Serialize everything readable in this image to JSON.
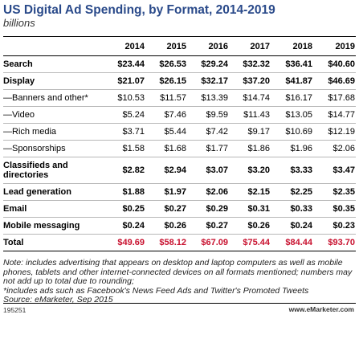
{
  "header": {
    "title": "US Digital Ad Spending, by Format, 2014-2019",
    "subtitle": "billions"
  },
  "chart_data": {
    "type": "table",
    "title": "US Digital Ad Spending, by Format, 2014-2019",
    "subtitle": "billions",
    "columns": [
      "2014",
      "2015",
      "2016",
      "2017",
      "2018",
      "2019"
    ],
    "rows": [
      {
        "label": "Search",
        "values": [
          "$23.44",
          "$26.53",
          "$29.24",
          "$32.32",
          "$36.41",
          "$40.60"
        ],
        "bold": true
      },
      {
        "label": "Display",
        "values": [
          "$21.07",
          "$26.15",
          "$32.17",
          "$37.20",
          "$41.87",
          "$46.69"
        ],
        "bold": true
      },
      {
        "label": "—Banners and other*",
        "values": [
          "$10.53",
          "$11.57",
          "$13.39",
          "$14.74",
          "$16.17",
          "$17.68"
        ],
        "bold": false
      },
      {
        "label": "—Video",
        "values": [
          "$5.24",
          "$7.46",
          "$9.59",
          "$11.43",
          "$13.05",
          "$14.77"
        ],
        "bold": false
      },
      {
        "label": "—Rich media",
        "values": [
          "$3.71",
          "$5.44",
          "$7.42",
          "$9.17",
          "$10.69",
          "$12.19"
        ],
        "bold": false
      },
      {
        "label": "—Sponsorships",
        "values": [
          "$1.58",
          "$1.68",
          "$1.77",
          "$1.86",
          "$1.96",
          "$2.06"
        ],
        "bold": false
      },
      {
        "label": "Classifieds and directories",
        "values": [
          "$2.82",
          "$2.94",
          "$3.07",
          "$3.20",
          "$3.33",
          "$3.47"
        ],
        "bold": true
      },
      {
        "label": "Lead generation",
        "values": [
          "$1.88",
          "$1.97",
          "$2.06",
          "$2.15",
          "$2.25",
          "$2.35"
        ],
        "bold": true
      },
      {
        "label": "Email",
        "values": [
          "$0.25",
          "$0.27",
          "$0.29",
          "$0.31",
          "$0.33",
          "$0.35"
        ],
        "bold": true
      },
      {
        "label": "Mobile messaging",
        "values": [
          "$0.24",
          "$0.26",
          "$0.27",
          "$0.26",
          "$0.24",
          "$0.23"
        ],
        "bold": true
      },
      {
        "label": "Total",
        "values": [
          "$49.69",
          "$58.12",
          "$67.09",
          "$75.44",
          "$84.44",
          "$93.70"
        ],
        "bold": true,
        "total": true
      }
    ]
  },
  "notes": {
    "note": "Note: includes advertising that appears on desktop and laptop computers as well as mobile phones, tablets and other internet-connected devices on all formats mentioned; numbers may not add up to total due to rounding;",
    "footnote": "*includes ads such as Facebook's News Feed Ads and Twitter's Promoted Tweets",
    "source": "Source: eMarketer, Sep 2015"
  },
  "footer": {
    "id": "195251",
    "logo": "www.eMarketer.com"
  },
  "colors": {
    "title": "#2a4a8a",
    "total_values": "#c8102e"
  }
}
